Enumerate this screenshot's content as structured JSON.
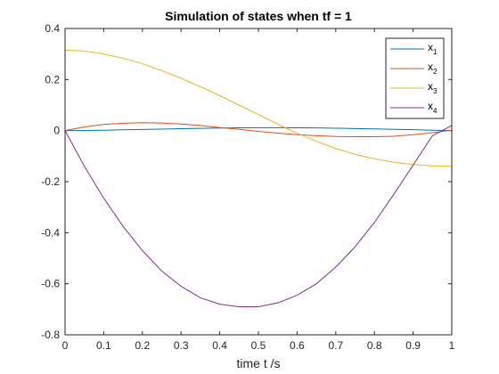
{
  "chart_data": {
    "type": "line",
    "title": "Simulation of states when tf = 1",
    "xlabel": "time t /s",
    "ylabel": "",
    "xlim": [
      0,
      1
    ],
    "ylim": [
      -0.8,
      0.4
    ],
    "xticks": [
      0,
      0.1,
      0.2,
      0.3,
      0.4,
      0.5,
      0.6,
      0.7,
      0.8,
      0.9,
      1
    ],
    "xtick_labels": [
      "0",
      "0.1",
      "0.2",
      "0.3",
      "0.4",
      "0.5",
      "0.6",
      "0.7",
      "0.8",
      "0.9",
      "1"
    ],
    "yticks": [
      0.4,
      0.2,
      0,
      -0.2,
      -0.4,
      -0.6,
      -0.8
    ],
    "ytick_labels": [
      "0.4",
      "0.2",
      "0",
      "-0.2",
      "-0.4",
      "-0.6",
      "-0.8"
    ],
    "grid": false,
    "legend_position": "top-right",
    "x": [
      0,
      0.05,
      0.1,
      0.15,
      0.2,
      0.25,
      0.3,
      0.35,
      0.4,
      0.45,
      0.5,
      0.55,
      0.6,
      0.65,
      0.7,
      0.75,
      0.8,
      0.85,
      0.9,
      0.95,
      1.0
    ],
    "series": [
      {
        "name": "x1",
        "label_base": "x",
        "label_sub": "1",
        "color": "#0072BD",
        "values": [
          0,
          0.0005,
          0.0015,
          0.003,
          0.0045,
          0.006,
          0.0075,
          0.009,
          0.01,
          0.011,
          0.0115,
          0.0115,
          0.011,
          0.0105,
          0.0095,
          0.008,
          0.0065,
          0.005,
          0.0035,
          0.0015,
          0
        ]
      },
      {
        "name": "x2",
        "label_base": "x",
        "label_sub": "2",
        "color": "#D95319",
        "values": [
          0,
          0.014,
          0.024,
          0.029,
          0.031,
          0.03,
          0.026,
          0.02,
          0.012,
          0.005,
          -0.003,
          -0.01,
          -0.016,
          -0.02,
          -0.023,
          -0.024,
          -0.024,
          -0.022,
          -0.016,
          -0.008,
          0.002
        ]
      },
      {
        "name": "x3",
        "label_base": "x",
        "label_sub": "3",
        "color": "#EDB120",
        "values": [
          0.315,
          0.312,
          0.3,
          0.283,
          0.262,
          0.235,
          0.205,
          0.172,
          0.137,
          0.1,
          0.063,
          0.025,
          -0.01,
          -0.042,
          -0.07,
          -0.093,
          -0.11,
          -0.124,
          -0.133,
          -0.138,
          -0.14
        ]
      },
      {
        "name": "x4",
        "label_base": "x",
        "label_sub": "4",
        "color": "#7E2F8E",
        "values": [
          0,
          -0.14,
          -0.265,
          -0.375,
          -0.47,
          -0.55,
          -0.61,
          -0.655,
          -0.68,
          -0.69,
          -0.69,
          -0.675,
          -0.645,
          -0.6,
          -0.535,
          -0.455,
          -0.36,
          -0.25,
          -0.135,
          -0.02,
          0.02
        ]
      }
    ]
  }
}
